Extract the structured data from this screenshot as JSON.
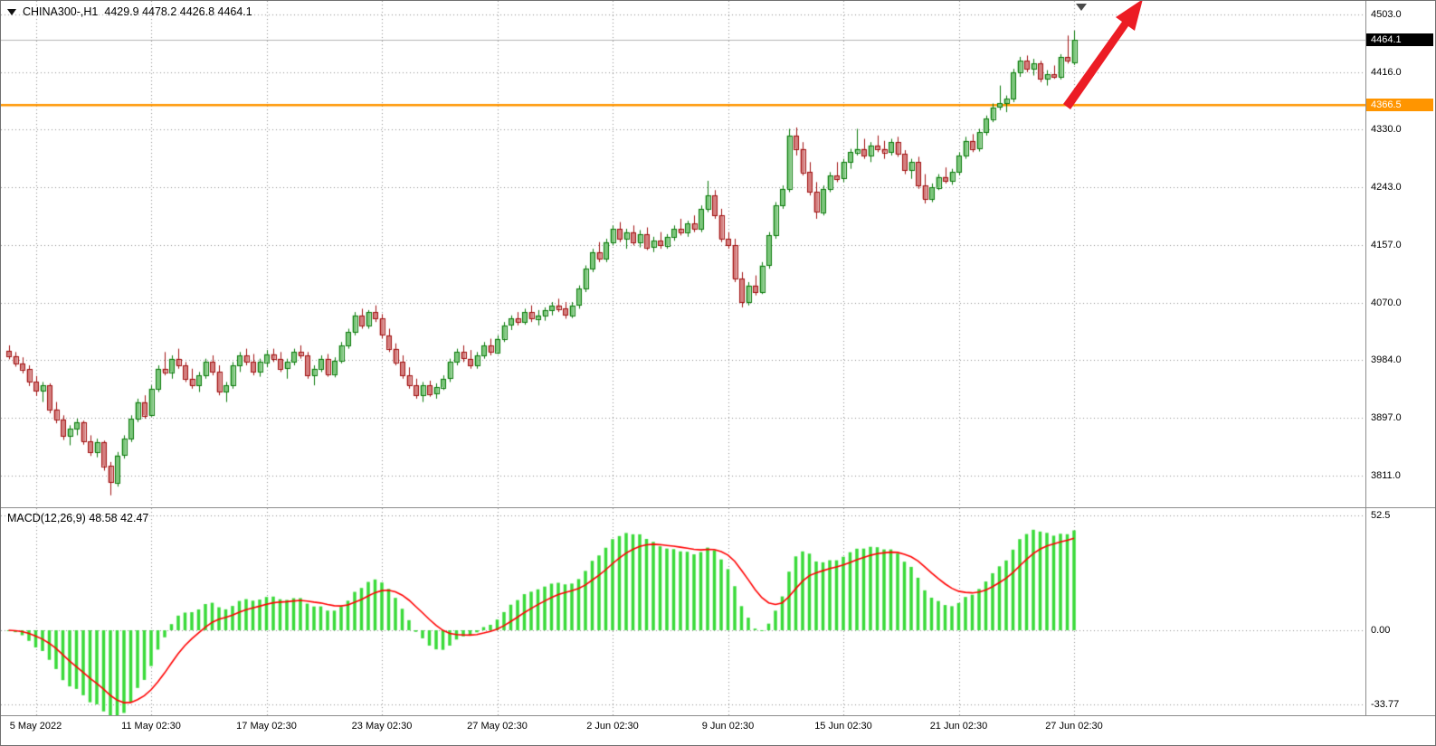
{
  "header": {
    "symbol_tf": "CHINA300-,H1",
    "ohlc": "4429.9 4478.2 4426.8 4464.1"
  },
  "chart_data": {
    "type": "candlestick",
    "symbol": "CHINA300-",
    "timeframe": "H1",
    "last_ohlc": {
      "open": 4429.9,
      "high": 4478.2,
      "low": 4426.8,
      "close": 4464.1
    },
    "price_axis": {
      "max": 4523,
      "min": 3763,
      "tick_labels": [
        "4503.0",
        "4416.0",
        "4330.0",
        "4243.0",
        "4157.0",
        "4070.0",
        "3984.0",
        "3897.0",
        "3811.0"
      ],
      "tick_values": [
        4503.0,
        4416.0,
        4330.0,
        4243.0,
        4157.0,
        4070.0,
        3984.0,
        3897.0,
        3811.0
      ],
      "current_price": 4464.1,
      "current_price_label": "4464.1",
      "hline": {
        "price": 4366.5,
        "label": "4366.5"
      }
    },
    "x_axis": {
      "labels": [
        {
          "text": "5 May 2022",
          "index": 4
        },
        {
          "text": "11 May 02:30",
          "index": 21
        },
        {
          "text": "17 May 02:30",
          "index": 38
        },
        {
          "text": "23 May 02:30",
          "index": 55
        },
        {
          "text": "27 May 02:30",
          "index": 72
        },
        {
          "text": "2 Jun 02:30",
          "index": 89
        },
        {
          "text": "9 Jun 02:30",
          "index": 106
        },
        {
          "text": "15 Jun 02:30",
          "index": 123
        },
        {
          "text": "21 Jun 02:30",
          "index": 140
        },
        {
          "text": "27 Jun 02:30",
          "index": 157
        }
      ]
    },
    "candles": [
      [
        3998,
        4006,
        3985,
        3990
      ],
      [
        3990,
        3996,
        3974,
        3979
      ],
      [
        3979,
        3988,
        3964,
        3970
      ],
      [
        3970,
        3976,
        3945,
        3951
      ],
      [
        3951,
        3960,
        3930,
        3938
      ],
      [
        3938,
        3951,
        3921,
        3946
      ],
      [
        3946,
        3949,
        3904,
        3910
      ],
      [
        3910,
        3921,
        3889,
        3895
      ],
      [
        3895,
        3901,
        3864,
        3870
      ],
      [
        3870,
        3886,
        3856,
        3881
      ],
      [
        3881,
        3896,
        3871,
        3891
      ],
      [
        3891,
        3893,
        3857,
        3862
      ],
      [
        3862,
        3871,
        3840,
        3846
      ],
      [
        3846,
        3866,
        3838,
        3861
      ],
      [
        3861,
        3863,
        3818,
        3825
      ],
      [
        3825,
        3831,
        3781,
        3800
      ],
      [
        3800,
        3846,
        3794,
        3841
      ],
      [
        3841,
        3871,
        3836,
        3866
      ],
      [
        3866,
        3901,
        3861,
        3896
      ],
      [
        3896,
        3926,
        3891,
        3921
      ],
      [
        3921,
        3931,
        3896,
        3901
      ],
      [
        3901,
        3946,
        3899,
        3941
      ],
      [
        3941,
        3976,
        3936,
        3971
      ],
      [
        3971,
        3996,
        3961,
        3966
      ],
      [
        3966,
        3991,
        3956,
        3986
      ],
      [
        3986,
        4001,
        3971,
        3976
      ],
      [
        3976,
        3981,
        3951,
        3956
      ],
      [
        3956,
        3971,
        3941,
        3946
      ],
      [
        3946,
        3966,
        3936,
        3961
      ],
      [
        3961,
        3986,
        3956,
        3981
      ],
      [
        3981,
        3991,
        3961,
        3966
      ],
      [
        3966,
        3976,
        3931,
        3936
      ],
      [
        3936,
        3951,
        3921,
        3946
      ],
      [
        3946,
        3981,
        3941,
        3976
      ],
      [
        3976,
        3996,
        3966,
        3991
      ],
      [
        3991,
        4001,
        3976,
        3981
      ],
      [
        3981,
        3993,
        3961,
        3966
      ],
      [
        3966,
        3986,
        3959,
        3981
      ],
      [
        3981,
        3999,
        3973,
        3993
      ],
      [
        3993,
        4001,
        3981,
        3986
      ],
      [
        3986,
        3996,
        3966,
        3971
      ],
      [
        3971,
        3986,
        3956,
        3981
      ],
      [
        3981,
        4001,
        3976,
        3996
      ],
      [
        3996,
        4006,
        3986,
        3991
      ],
      [
        3991,
        3996,
        3956,
        3961
      ],
      [
        3961,
        3976,
        3946,
        3971
      ],
      [
        3971,
        3991,
        3966,
        3986
      ],
      [
        3986,
        3993,
        3959,
        3963
      ],
      [
        3963,
        3988,
        3958,
        3983
      ],
      [
        3983,
        4011,
        3979,
        4006
      ],
      [
        4006,
        4031,
        4001,
        4026
      ],
      [
        4026,
        4056,
        4021,
        4051
      ],
      [
        4051,
        4061,
        4031,
        4036
      ],
      [
        4036,
        4059,
        4031,
        4056
      ],
      [
        4056,
        4066,
        4041,
        4046
      ],
      [
        4046,
        4053,
        4016,
        4021
      ],
      [
        4021,
        4031,
        3996,
        4001
      ],
      [
        4001,
        4009,
        3976,
        3981
      ],
      [
        3981,
        3991,
        3956,
        3961
      ],
      [
        3961,
        3973,
        3941,
        3946
      ],
      [
        3946,
        3956,
        3926,
        3931
      ],
      [
        3931,
        3951,
        3921,
        3946
      ],
      [
        3946,
        3953,
        3929,
        3933
      ],
      [
        3933,
        3949,
        3926,
        3943
      ],
      [
        3943,
        3961,
        3939,
        3956
      ],
      [
        3956,
        3986,
        3951,
        3981
      ],
      [
        3981,
        4001,
        3976,
        3996
      ],
      [
        3996,
        4006,
        3981,
        3986
      ],
      [
        3986,
        3999,
        3971,
        3976
      ],
      [
        3976,
        3996,
        3971,
        3991
      ],
      [
        3991,
        4011,
        3986,
        4006
      ],
      [
        4006,
        4016,
        3991,
        3996
      ],
      [
        3996,
        4021,
        3993,
        4016
      ],
      [
        4016,
        4041,
        4011,
        4036
      ],
      [
        4036,
        4051,
        4029,
        4046
      ],
      [
        4046,
        4056,
        4036,
        4041
      ],
      [
        4041,
        4061,
        4037,
        4056
      ],
      [
        4056,
        4066,
        4041,
        4046
      ],
      [
        4046,
        4059,
        4036,
        4051
      ],
      [
        4051,
        4063,
        4043,
        4059
      ],
      [
        4059,
        4071,
        4051,
        4066
      ],
      [
        4066,
        4076,
        4056,
        4061
      ],
      [
        4061,
        4071,
        4046,
        4051
      ],
      [
        4051,
        4071,
        4047,
        4066
      ],
      [
        4066,
        4096,
        4061,
        4091
      ],
      [
        4091,
        4126,
        4086,
        4121
      ],
      [
        4121,
        4151,
        4116,
        4146
      ],
      [
        4146,
        4161,
        4131,
        4136
      ],
      [
        4136,
        4166,
        4131,
        4161
      ],
      [
        4161,
        4186,
        4156,
        4181
      ],
      [
        4181,
        4191,
        4161,
        4166
      ],
      [
        4166,
        4181,
        4151,
        4176
      ],
      [
        4176,
        4186,
        4156,
        4161
      ],
      [
        4161,
        4179,
        4153,
        4173
      ],
      [
        4173,
        4183,
        4149,
        4153
      ],
      [
        4153,
        4169,
        4146,
        4163
      ],
      [
        4163,
        4176,
        4151,
        4156
      ],
      [
        4156,
        4173,
        4151,
        4169
      ],
      [
        4169,
        4186,
        4163,
        4181
      ],
      [
        4181,
        4196,
        4171,
        4176
      ],
      [
        4176,
        4193,
        4169,
        4189
      ],
      [
        4189,
        4201,
        4176,
        4181
      ],
      [
        4181,
        4216,
        4176,
        4211
      ],
      [
        4211,
        4253,
        4206,
        4231
      ],
      [
        4231,
        4239,
        4196,
        4201
      ],
      [
        4201,
        4211,
        4161,
        4166
      ],
      [
        4166,
        4176,
        4151,
        4156
      ],
      [
        4156,
        4166,
        4101,
        4106
      ],
      [
        4106,
        4116,
        4063,
        4071
      ],
      [
        4071,
        4101,
        4066,
        4096
      ],
      [
        4096,
        4111,
        4081,
        4086
      ],
      [
        4086,
        4131,
        4083,
        4126
      ],
      [
        4126,
        4176,
        4121,
        4171
      ],
      [
        4171,
        4221,
        4166,
        4216
      ],
      [
        4216,
        4246,
        4211,
        4241
      ],
      [
        4241,
        4331,
        4236,
        4321
      ],
      [
        4321,
        4333,
        4291,
        4301
      ],
      [
        4301,
        4311,
        4261,
        4266
      ],
      [
        4266,
        4281,
        4231,
        4236
      ],
      [
        4236,
        4251,
        4196,
        4206
      ],
      [
        4206,
        4246,
        4201,
        4241
      ],
      [
        4241,
        4266,
        4236,
        4261
      ],
      [
        4261,
        4281,
        4251,
        4256
      ],
      [
        4256,
        4286,
        4251,
        4281
      ],
      [
        4281,
        4301,
        4271,
        4296
      ],
      [
        4296,
        4331,
        4291,
        4301
      ],
      [
        4301,
        4316,
        4286,
        4291
      ],
      [
        4291,
        4311,
        4281,
        4306
      ],
      [
        4306,
        4321,
        4296,
        4301
      ],
      [
        4301,
        4313,
        4286,
        4296
      ],
      [
        4296,
        4316,
        4291,
        4311
      ],
      [
        4311,
        4319,
        4289,
        4293
      ],
      [
        4293,
        4299,
        4263,
        4269
      ],
      [
        4269,
        4286,
        4256,
        4281
      ],
      [
        4281,
        4289,
        4241,
        4246
      ],
      [
        4246,
        4263,
        4219,
        4226
      ],
      [
        4226,
        4249,
        4221,
        4243
      ],
      [
        4243,
        4263,
        4239,
        4259
      ],
      [
        4259,
        4273,
        4249,
        4253
      ],
      [
        4253,
        4271,
        4247,
        4266
      ],
      [
        4266,
        4296,
        4261,
        4291
      ],
      [
        4291,
        4319,
        4286,
        4313
      ],
      [
        4313,
        4323,
        4296,
        4301
      ],
      [
        4301,
        4331,
        4297,
        4326
      ],
      [
        4326,
        4351,
        4321,
        4346
      ],
      [
        4346,
        4369,
        4341,
        4363
      ],
      [
        4363,
        4396,
        4359,
        4369
      ],
      [
        4369,
        4381,
        4356,
        4376
      ],
      [
        4376,
        4421,
        4371,
        4416
      ],
      [
        4416,
        4439,
        4409,
        4433
      ],
      [
        4433,
        4441,
        4416,
        4421
      ],
      [
        4421,
        4436,
        4411,
        4429
      ],
      [
        4429,
        4433,
        4401,
        4406
      ],
      [
        4406,
        4419,
        4396,
        4413
      ],
      [
        4413,
        4426,
        4406,
        4409
      ],
      [
        4409,
        4443,
        4405,
        4439
      ],
      [
        4439,
        4471,
        4429,
        4434
      ],
      [
        4429.9,
        4478.2,
        4426.8,
        4464.1
      ]
    ],
    "indicator": {
      "name": "MACD",
      "params": "12,26,9",
      "label": "MACD(12,26,9)",
      "values": "48.58 42.47",
      "tick_labels": [
        "52.5",
        "0.00",
        "-33.77"
      ],
      "tick_values": [
        52.5,
        0,
        -33.77
      ]
    },
    "colors": {
      "bull_fill": "#7cc67c",
      "bull_stroke": "#0a7a0a",
      "bear_fill": "#d47f7f",
      "bear_stroke": "#a01010",
      "histogram": "#3ada3a",
      "signal": "#ff0000",
      "grid": "#8f8f8f",
      "hline": "#ff9500",
      "current_line": "#b4b4b4",
      "arrow": "#ec1c24",
      "badge_current_bg": "#000000",
      "badge_current_fg": "#ffffff",
      "badge_hline_bg": "#ff9500",
      "badge_hline_fg": "#ffffff"
    }
  }
}
